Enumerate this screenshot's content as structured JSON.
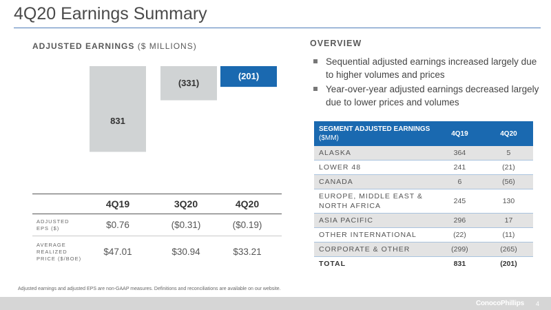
{
  "header": {
    "title": "4Q20 Earnings Summary"
  },
  "left": {
    "heading_bold": "ADJUSTED EARNINGS",
    "heading_unit": " ($ MILLIONS)"
  },
  "chart_data": {
    "type": "bar",
    "title": "ADJUSTED EARNINGS ($ MILLIONS)",
    "categories": [
      "4Q19",
      "3Q20",
      "4Q20"
    ],
    "values": [
      831,
      -331,
      -201
    ],
    "value_labels": [
      "831",
      "(331)",
      "(201)"
    ],
    "colors": [
      "#d0d3d4",
      "#d0d3d4",
      "#1a69b0"
    ],
    "label_colors": [
      "#333333",
      "#333333",
      "#ffffff"
    ],
    "ylim": [
      -331,
      831
    ],
    "grid": false
  },
  "metrics": {
    "columns": [
      "4Q19",
      "3Q20",
      "4Q20"
    ],
    "rows": [
      {
        "label": "ADJUSTED\nEPS ($)",
        "values": [
          "$0.76",
          "($0.31)",
          "($0.19)"
        ]
      },
      {
        "label": "AVERAGE\nREALIZED\nPRICE ($/BOE)",
        "values": [
          "$47.01",
          "$30.94",
          "$33.21"
        ]
      }
    ]
  },
  "overview": {
    "heading": "OVERVIEW",
    "bullets": [
      "Sequential adjusted earnings increased largely due to higher volumes and prices",
      "Year-over-year adjusted earnings decreased largely due to lower prices and volumes"
    ]
  },
  "segment_table": {
    "header_title": "SEGMENT ADJUSTED EARNINGS",
    "header_unit": "($MM)",
    "col1": "4Q19",
    "col2": "4Q20",
    "rows": [
      {
        "name": "ALASKA",
        "q1": "364",
        "q2": "5"
      },
      {
        "name": "LOWER 48",
        "q1": "241",
        "q2": "(21)"
      },
      {
        "name": "CANADA",
        "q1": "6",
        "q2": "(56)"
      },
      {
        "name": "EUROPE, MIDDLE EAST & NORTH AFRICA",
        "q1": "245",
        "q2": "130"
      },
      {
        "name": "ASIA PACIFIC",
        "q1": "296",
        "q2": "17"
      },
      {
        "name": "OTHER INTERNATIONAL",
        "q1": "(22)",
        "q2": "(11)"
      },
      {
        "name": "CORPORATE & OTHER",
        "q1": "(299)",
        "q2": "(265)"
      },
      {
        "name": "TOTAL",
        "q1": "831",
        "q2": "(201)"
      }
    ]
  },
  "footer": {
    "note": "Adjusted earnings and adjusted EPS are non-GAAP measures. Definitions and reconciliations are available on our website.",
    "logo": "ConocoPhillips",
    "page": "4"
  }
}
